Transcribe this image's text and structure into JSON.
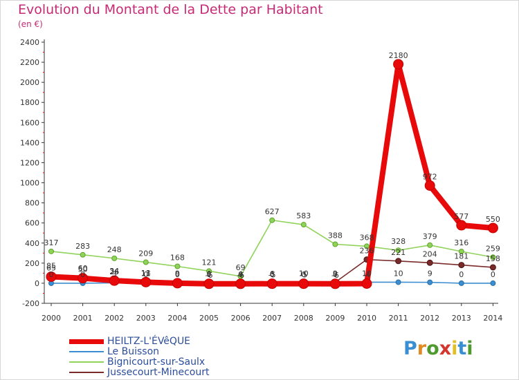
{
  "title": "Evolution du Montant de la Dette par Habitant",
  "subtitle": "(en €)",
  "logo": {
    "text": "Proxiti",
    "colors": [
      "#3a8fd3",
      "#e28a22",
      "#4f9a2f",
      "#d3362b",
      "#e2c022",
      "#3a8fd3",
      "#4f9a2f"
    ]
  },
  "chart_data": {
    "type": "line",
    "title": "Evolution du Montant de la Dette par Habitant",
    "ylabel": "(en €)",
    "xlabel": "",
    "categories": [
      "2000",
      "2001",
      "2002",
      "2003",
      "2004",
      "2005",
      "2006",
      "2007",
      "2008",
      "2009",
      "2010",
      "2011",
      "2012",
      "2013",
      "2014"
    ],
    "yticks": [
      "2400",
      "2200",
      "2000",
      "1800",
      "1600",
      "1400",
      "1200",
      "1000",
      "800",
      "600",
      "400",
      "200",
      "0",
      "-200"
    ],
    "ylim": [
      -200,
      2400
    ],
    "grid": false,
    "legend_position": "bottom-left",
    "series": [
      {
        "name": "HEILTZ-L'ÉVêQUE",
        "color": "#e8090a",
        "values": [
          65,
          50,
          26,
          11,
          0,
          -6,
          -6,
          -5,
          -5,
          -6,
          -4,
          2180,
          972,
          577,
          550
        ],
        "labels": [
          "65",
          "50",
          "26",
          "11",
          "0",
          "-6",
          "-6",
          "-5",
          "-5",
          "-6",
          "-4",
          "2180",
          "972",
          "577",
          "550"
        ]
      },
      {
        "name": "Le Buisson",
        "color": "#3a8ed1",
        "values": [
          0,
          0,
          3,
          0,
          0,
          0,
          0,
          0,
          0,
          0,
          10,
          10,
          9,
          0,
          0
        ],
        "labels": [
          "0",
          "0",
          "3",
          "0",
          "0",
          "0",
          "0",
          "0",
          "0",
          "0",
          "10",
          "10",
          "9",
          "0",
          "0"
        ]
      },
      {
        "name": "Bignicourt-sur-Saulx",
        "color": "#8fd35a",
        "values": [
          317,
          283,
          248,
          209,
          168,
          121,
          69,
          627,
          583,
          388,
          368,
          328,
          379,
          316,
          259
        ],
        "labels": [
          "317",
          "283",
          "248",
          "209",
          "168",
          "121",
          "69",
          "627",
          "583",
          "388",
          "368",
          "328",
          "379",
          "316",
          "259"
        ]
      },
      {
        "name": "Jussecourt-Minecourt",
        "color": "#7b2a2a",
        "values": [
          85,
          60,
          34,
          13,
          9,
          6,
          4,
          6,
          10,
          9,
          236,
          221,
          204,
          181,
          158
        ],
        "labels": [
          "85",
          "60",
          "34",
          "13",
          "9",
          "6",
          "4",
          "6",
          "10",
          "9",
          "236",
          "221",
          "204",
          "181",
          "158"
        ]
      }
    ]
  }
}
